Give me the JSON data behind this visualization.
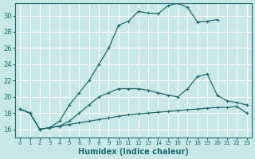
{
  "xlabel": "Humidex (Indice chaleur)",
  "bg_color": "#c8e8e8",
  "line_color": "#1a6b6b",
  "grid_color": "#ffffff",
  "xlim": [
    -0.5,
    23.5
  ],
  "ylim": [
    15.0,
    31.5
  ],
  "xticks": [
    0,
    1,
    2,
    3,
    4,
    5,
    6,
    7,
    8,
    9,
    10,
    11,
    12,
    13,
    14,
    15,
    16,
    17,
    18,
    19,
    20,
    21,
    22,
    23
  ],
  "yticks": [
    16,
    18,
    20,
    22,
    24,
    26,
    28,
    30
  ],
  "line1_x": [
    0,
    1,
    2,
    3,
    4,
    5,
    6,
    7,
    8,
    9,
    10,
    11,
    12,
    13,
    14,
    15,
    16,
    17,
    18,
    19,
    20,
    21,
    22,
    23
  ],
  "line1_y": [
    18.5,
    18.0,
    16.0,
    16.2,
    16.4,
    16.6,
    16.8,
    17.0,
    17.2,
    17.4,
    17.6,
    17.8,
    17.9,
    18.0,
    18.1,
    18.2,
    18.3,
    18.4,
    18.5,
    18.6,
    18.7,
    18.7,
    18.8,
    18.0
  ],
  "line2_x": [
    0,
    1,
    2,
    3,
    4,
    5,
    6,
    7,
    8,
    9,
    10,
    11,
    12,
    13,
    14,
    15,
    16,
    17,
    18,
    19,
    20,
    21,
    22,
    23
  ],
  "line2_y": [
    18.5,
    18.0,
    16.0,
    16.2,
    16.4,
    17.0,
    18.0,
    19.0,
    20.0,
    20.5,
    21.0,
    21.0,
    21.0,
    20.8,
    20.5,
    20.2,
    20.0,
    21.0,
    22.5,
    22.8,
    20.2,
    19.5,
    19.3,
    19.0
  ],
  "line3_x": [
    0,
    1,
    2,
    3,
    4,
    5,
    6,
    7,
    8,
    9,
    10,
    11,
    12,
    13,
    14,
    15,
    16,
    17,
    18,
    19,
    20
  ],
  "line3_y": [
    18.5,
    18.0,
    16.0,
    16.2,
    17.0,
    19.0,
    20.5,
    22.0,
    24.0,
    26.0,
    28.8,
    29.3,
    30.5,
    30.3,
    30.2,
    31.2,
    31.5,
    31.0,
    29.2,
    29.3,
    29.5
  ]
}
